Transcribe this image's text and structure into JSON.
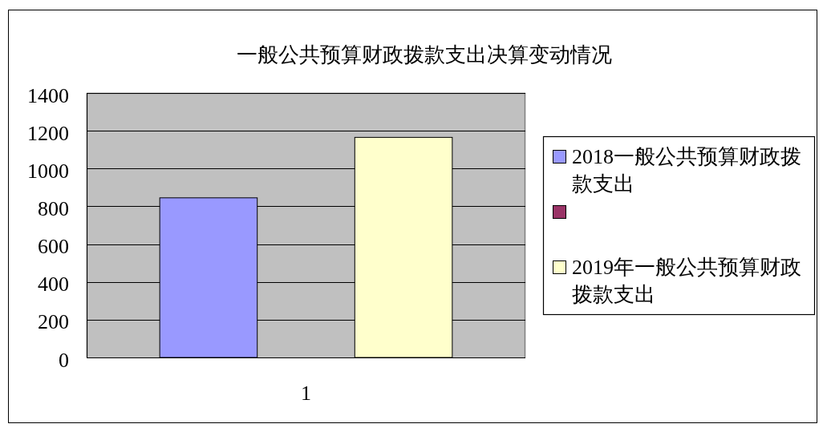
{
  "chart_data": {
    "type": "bar",
    "title": "一般公共预算财政拨款支出决算变动情况",
    "categories": [
      "1"
    ],
    "series": [
      {
        "name": "2018一般公共预算财政拨款支出",
        "color": "#9999ff",
        "values": [
          845
        ]
      },
      {
        "color": "#993366",
        "values": [
          null
        ]
      },
      {
        "name": "2019年一般公共预算财政拨款支出",
        "color": "#ffffcc",
        "values": [
          1165
        ]
      }
    ],
    "ylim": [
      0,
      1400
    ],
    "yticks": [
      0,
      200,
      400,
      600,
      800,
      1000,
      1200,
      1400
    ],
    "grid": "y",
    "legend": "right"
  }
}
